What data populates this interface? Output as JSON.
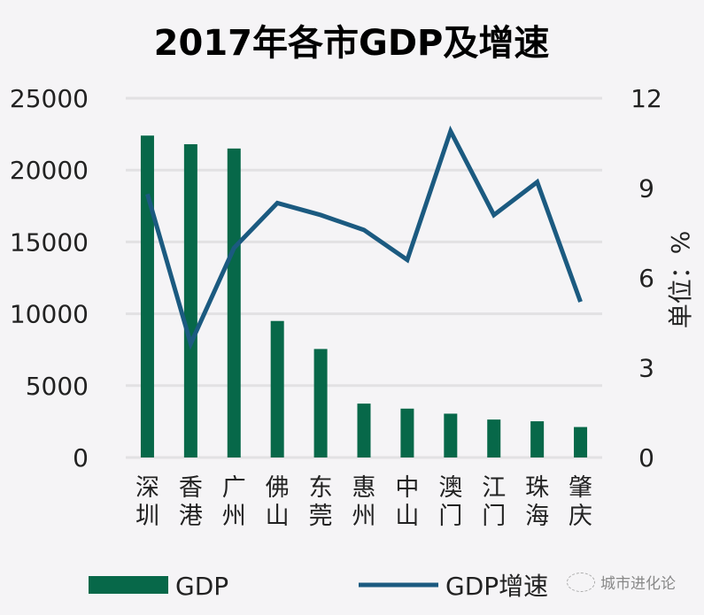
{
  "chart_data": {
    "type": "bar+line",
    "title": "2017年各市GDP及增速",
    "categories": [
      "深圳",
      "香港",
      "广州",
      "佛山",
      "东莞",
      "惠州",
      "中山",
      "澳门",
      "江门",
      "珠海",
      "肇庆"
    ],
    "series": [
      {
        "name": "GDP",
        "type": "bar",
        "axis": "left",
        "color": "#076849",
        "values": [
          22400,
          21800,
          21500,
          9500,
          7550,
          3750,
          3400,
          3050,
          2640,
          2520,
          2120
        ]
      },
      {
        "name": "GDP增速",
        "type": "line",
        "axis": "right",
        "color": "#1b5a80",
        "values": [
          8.8,
          3.8,
          7.0,
          8.5,
          8.1,
          7.6,
          6.6,
          10.9,
          8.1,
          9.2,
          5.2
        ]
      }
    ],
    "left_axis": {
      "ylim": [
        0,
        25000
      ],
      "ticks": [
        "0",
        "5000",
        "10000",
        "15000",
        "20000",
        "25000"
      ]
    },
    "right_axis": {
      "ylim": [
        0,
        12
      ],
      "ticks": [
        "0",
        "3",
        "6",
        "9",
        "12"
      ],
      "label": "单位：%"
    },
    "grid": true,
    "legend": "bottom"
  },
  "watermark": "城市进化论"
}
